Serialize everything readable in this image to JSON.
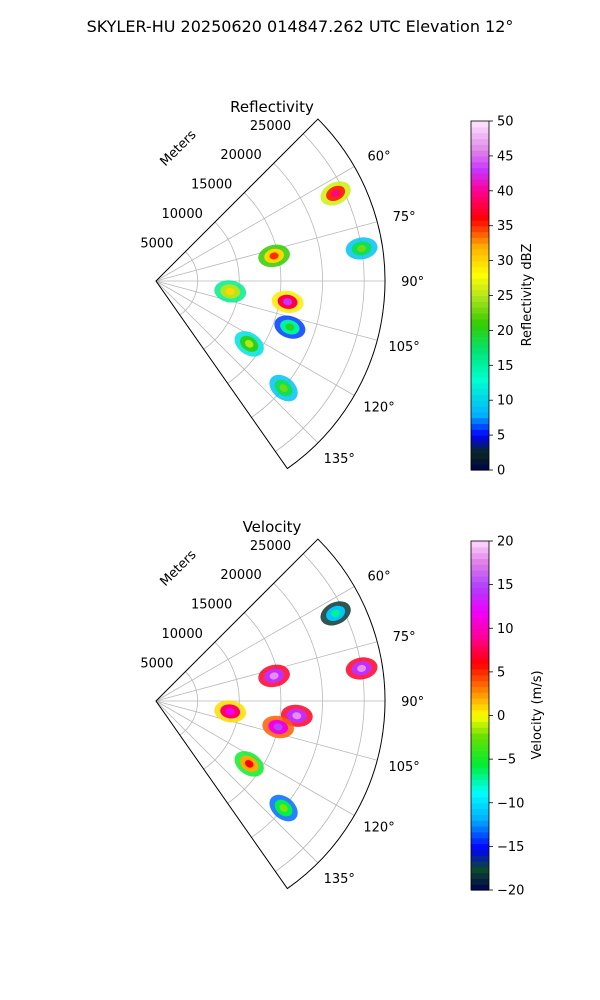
{
  "figure_title": "SKYLER-HU  20250620  014847.262 UTC Elevation 12°",
  "chart_data": [
    {
      "type": "polar-sector",
      "title": "Reflectivity",
      "range_axis_label": "Meters",
      "range_ticks": [
        5000,
        10000,
        15000,
        20000,
        25000
      ],
      "range_tick_labels": [
        "5000",
        "10000",
        "15000",
        "20000",
        "25000"
      ],
      "rlim": [
        0,
        27500
      ],
      "azimuth_limits_deg": [
        45,
        145
      ],
      "azimuth_ticks": [
        60,
        75,
        90,
        105,
        120,
        135
      ],
      "azimuth_tick_labels": [
        "60°",
        "75°",
        "90°",
        "105°",
        "120°",
        "135°"
      ],
      "grid": true,
      "colorbar": {
        "label": "Reflectivity dBZ",
        "range": [
          0,
          50
        ],
        "ticks": [
          0,
          5,
          10,
          15,
          20,
          25,
          30,
          35,
          40,
          45,
          50
        ],
        "tick_labels": [
          "0",
          "5",
          "10",
          "15",
          "20",
          "25",
          "30",
          "35",
          "40",
          "45",
          "50"
        ],
        "colormap": "NWSRef"
      },
      "cells": [
        {
          "az": 64,
          "r": 24000,
          "value": 35
        },
        {
          "az": 78,
          "r": 14500,
          "value": 30
        },
        {
          "az": 81,
          "r": 25000,
          "value": 18
        },
        {
          "az": 99,
          "r": 16000,
          "value": 38
        },
        {
          "az": 98,
          "r": 9000,
          "value": 25
        },
        {
          "az": 124,
          "r": 13500,
          "value": 20
        },
        {
          "az": 130,
          "r": 20000,
          "value": 18
        },
        {
          "az": 109,
          "r": 17000,
          "value": 15
        }
      ]
    },
    {
      "type": "polar-sector",
      "title": "Velocity",
      "range_axis_label": "Meters",
      "range_ticks": [
        5000,
        10000,
        15000,
        20000,
        25000
      ],
      "range_tick_labels": [
        "5000",
        "10000",
        "15000",
        "20000",
        "25000"
      ],
      "rlim": [
        0,
        27500
      ],
      "azimuth_limits_deg": [
        45,
        145
      ],
      "azimuth_ticks": [
        60,
        75,
        90,
        105,
        120,
        135
      ],
      "azimuth_tick_labels": [
        "60°",
        "75°",
        "90°",
        "105°",
        "120°",
        "135°"
      ],
      "grid": true,
      "colorbar": {
        "label": "Velocity (m/s)",
        "range": [
          -20,
          20
        ],
        "ticks": [
          -20,
          -15,
          -10,
          -5,
          0,
          5,
          10,
          15,
          20
        ],
        "tick_labels": [
          "−20",
          "−15",
          "−10",
          "−5",
          "0",
          "5",
          "10",
          "15",
          "20"
        ],
        "colormap": "NWSVel"
      },
      "cells": [
        {
          "az": 64,
          "r": 24000,
          "value": -11
        },
        {
          "az": 78,
          "r": 14500,
          "value": 14
        },
        {
          "az": 81,
          "r": 25000,
          "value": 14
        },
        {
          "az": 96,
          "r": 17000,
          "value": 14
        },
        {
          "az": 102,
          "r": 15000,
          "value": 11
        },
        {
          "az": 98,
          "r": 9000,
          "value": 8
        },
        {
          "az": 124,
          "r": 13500,
          "value": 2
        },
        {
          "az": 130,
          "r": 20000,
          "value": -6
        }
      ]
    }
  ]
}
